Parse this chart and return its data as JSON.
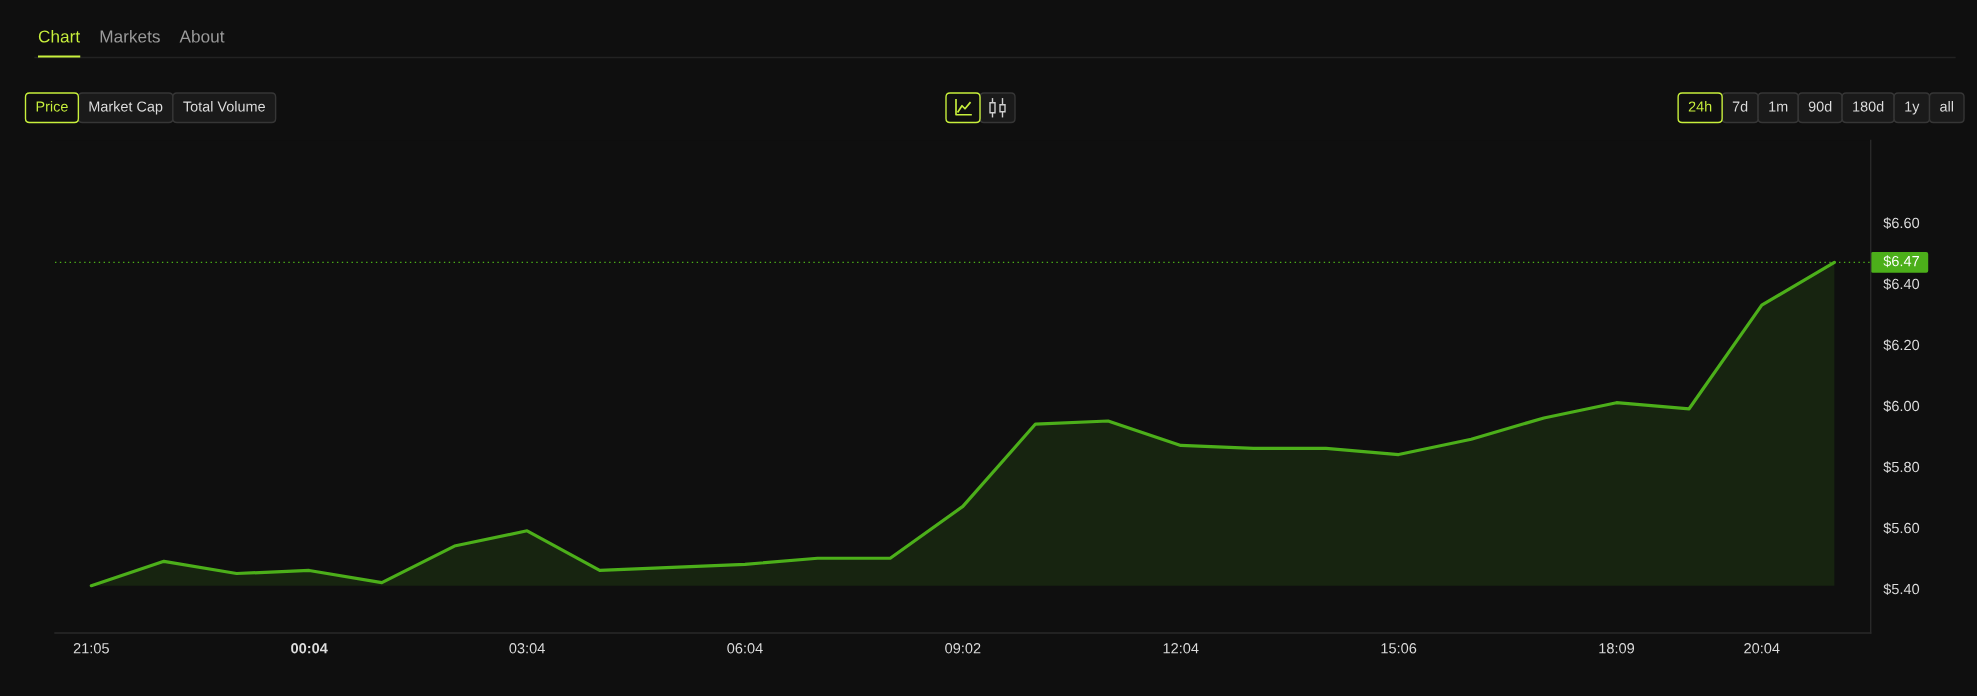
{
  "chart_data": {
    "type": "area",
    "categories": [
      "21:05",
      null,
      null,
      "00:04",
      null,
      null,
      "03:04",
      null,
      null,
      "06:04",
      null,
      null,
      "09:02",
      null,
      null,
      "12:04",
      null,
      null,
      "15:06",
      null,
      null,
      "18:09",
      null,
      "20:04",
      null
    ],
    "series": [
      {
        "color": "#4caf1a",
        "values": [
          5.41,
          5.49,
          5.45,
          5.46,
          5.42,
          5.54,
          5.59,
          5.46,
          5.47,
          5.48,
          5.5,
          5.5,
          5.67,
          5.94,
          5.95,
          5.87,
          5.86,
          5.86,
          5.84,
          5.89,
          5.96,
          6.01,
          5.99,
          6.33,
          6.47
        ]
      }
    ],
    "ylim": [
      5.255,
      6.87
    ],
    "yticks": [
      {
        "value": 5.4,
        "label": "$5.40"
      },
      {
        "value": 5.6,
        "label": "$5.60"
      },
      {
        "value": 5.8,
        "label": "$5.80"
      },
      {
        "value": 6.0,
        "label": "$6.00"
      },
      {
        "value": 6.2,
        "label": "$6.20"
      },
      {
        "value": 6.4,
        "label": "$6.40"
      },
      {
        "value": 6.6,
        "label": "$6.60"
      }
    ],
    "ref_lines": [
      {
        "axis": "y",
        "value": 6.47,
        "label": "$6.47",
        "color": "#4caf1a",
        "line_style": "dotted"
      }
    ],
    "annotations": [
      "Chart",
      "Markets",
      "About",
      "Price",
      "Market Cap",
      "Total Volume",
      "24h",
      "7d",
      "1m",
      "90d",
      "180d",
      "1y",
      "all"
    ]
  }
}
